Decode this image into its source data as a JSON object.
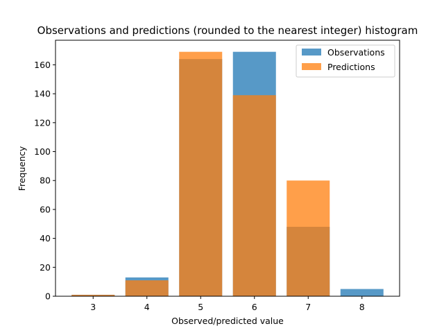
{
  "chart_data": {
    "type": "bar",
    "title": "Observations and predictions (rounded to the nearest integer) histogram",
    "xlabel": "Observed/predicted value",
    "ylabel": "Frequency",
    "categories": [
      3,
      4,
      5,
      6,
      7,
      8
    ],
    "ylim": [
      0,
      177
    ],
    "yticks": [
      0,
      20,
      40,
      60,
      80,
      100,
      120,
      140,
      160
    ],
    "grid": false,
    "legend_position": "top-right",
    "series": [
      {
        "name": "Observations",
        "color": "#1f77b4",
        "opacity": 0.75,
        "values": [
          1,
          13,
          164,
          169,
          48,
          5
        ]
      },
      {
        "name": "Predictions",
        "color": "#ff7f0e",
        "opacity": 0.75,
        "values": [
          1,
          11,
          169,
          139,
          80,
          0
        ]
      }
    ]
  }
}
